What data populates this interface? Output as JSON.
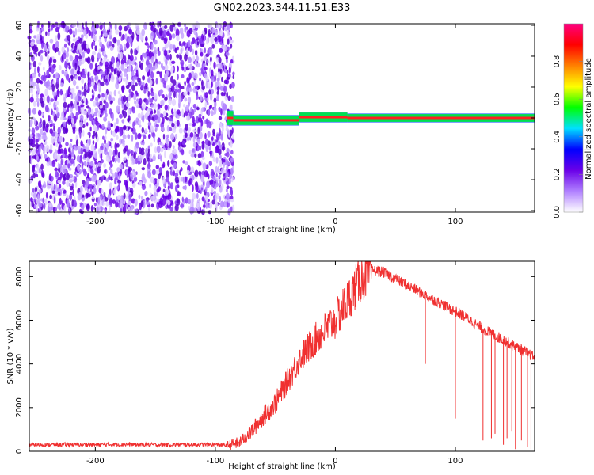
{
  "title": "GN02.2023.344.11.51.E33",
  "chart_data": [
    {
      "type": "heatmap",
      "xlabel": "Height of straight line (km)",
      "ylabel": "Frequency (Hz)",
      "xlim": [
        -255,
        166
      ],
      "ylim": [
        -61,
        61
      ],
      "xticks": [
        -200,
        -100,
        0,
        100
      ],
      "yticks": [
        60,
        40,
        20,
        0,
        -20,
        -40,
        -60
      ],
      "colorbar": {
        "label": "Normalized spectral amplitude",
        "range": [
          0,
          1
        ],
        "ticks": [
          "0.0",
          "0.2",
          "0.4",
          "0.6",
          "0.8"
        ],
        "colors": [
          "#ffffff",
          "#b080ff",
          "#6a00e8",
          "#0000ff",
          "#00e0ff",
          "#00ff00",
          "#ffff00",
          "#ff8000",
          "#ff0000",
          "#ff0080"
        ]
      },
      "regions": [
        {
          "x": [
            -255,
            -90
          ],
          "y": [
            -60,
            60
          ],
          "level": 0.1
        },
        {
          "x": [
            -90,
            -85
          ],
          "y": [
            -4,
            4
          ],
          "level": 0.3
        },
        {
          "x": [
            -85,
            -30
          ],
          "y": [
            -4,
            1
          ],
          "level": 0.5
        },
        {
          "x": [
            -30,
            10
          ],
          "y": [
            -2,
            3
          ],
          "level": 0.6
        },
        {
          "x": [
            10,
            166
          ],
          "y": [
            -2,
            2
          ],
          "level": 0.9
        }
      ]
    },
    {
      "type": "line",
      "xlabel": "Height of straight line (km)",
      "ylabel": "SNR (10 * v/v)",
      "xlim": [
        -255,
        166
      ],
      "ylim": [
        0,
        8700
      ],
      "xticks": [
        -200,
        -100,
        0,
        100
      ],
      "yticks": [
        0,
        2000,
        4000,
        6000,
        8000
      ],
      "color": "#f03030",
      "x": [
        -255,
        -240,
        -220,
        -200,
        -180,
        -160,
        -140,
        -120,
        -100,
        -90,
        -80,
        -70,
        -60,
        -50,
        -40,
        -30,
        -20,
        -10,
        0,
        10,
        20,
        30,
        40,
        50,
        60,
        70,
        80,
        90,
        100,
        110,
        120,
        130,
        140,
        150,
        160,
        166
      ],
      "y": [
        300,
        300,
        310,
        300,
        320,
        300,
        300,
        310,
        300,
        280,
        400,
        900,
        1600,
        2200,
        3200,
        4200,
        4900,
        5500,
        6000,
        6900,
        7800,
        8300,
        8200,
        7900,
        7600,
        7300,
        7000,
        6700,
        6400,
        6100,
        5700,
        5400,
        5100,
        4800,
        4500,
        4300
      ],
      "dips": [
        {
          "x": 75,
          "y": 4000
        },
        {
          "x": 100,
          "y": 1500
        },
        {
          "x": 123,
          "y": 500
        },
        {
          "x": 130,
          "y": 600
        },
        {
          "x": 133,
          "y": 800
        },
        {
          "x": 140,
          "y": 300
        },
        {
          "x": 143,
          "y": 600
        },
        {
          "x": 147,
          "y": 900
        },
        {
          "x": 150,
          "y": 100
        },
        {
          "x": 155,
          "y": 500
        },
        {
          "x": 160,
          "y": 200
        },
        {
          "x": 163,
          "y": 100
        }
      ]
    }
  ]
}
